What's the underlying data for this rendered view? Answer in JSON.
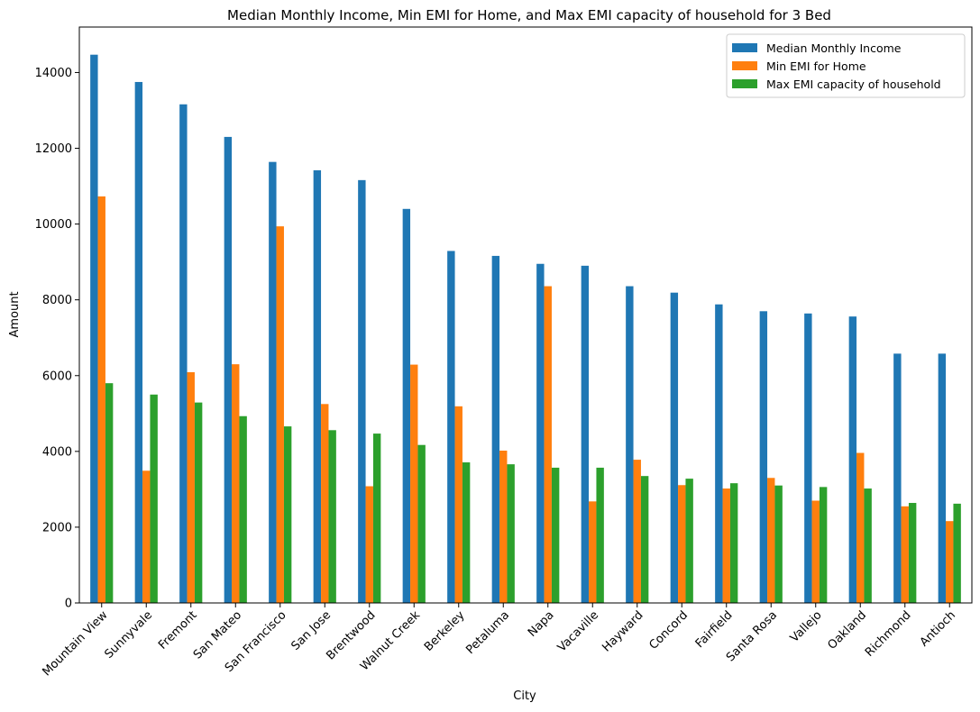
{
  "chart_data": {
    "type": "bar",
    "title": "Median Monthly Income, Min EMI for Home, and Max EMI capacity of household for 3 Bed",
    "xlabel": "City",
    "ylabel": "Amount",
    "ylim": [
      0,
      15200
    ],
    "yticks": [
      0,
      2000,
      4000,
      6000,
      8000,
      10000,
      12000,
      14000
    ],
    "legend_position": "top-right",
    "categories": [
      "Mountain View",
      "Sunnyvale",
      "Fremont",
      "San Mateo",
      "San Francisco",
      "San Jose",
      "Brentwood",
      "Walnut Creek",
      "Berkeley",
      "Petaluma",
      "Napa",
      "Vacaville",
      "Hayward",
      "Concord",
      "Fairfield",
      "Santa Rosa",
      "Vallejo",
      "Oakland",
      "Richmond",
      "Antioch"
    ],
    "series": [
      {
        "name": "Median Monthly Income",
        "color": "#1f77b4",
        "values": [
          14470,
          13750,
          13160,
          12300,
          11640,
          11420,
          11160,
          10400,
          9290,
          9160,
          8950,
          8900,
          8360,
          8190,
          7880,
          7700,
          7640,
          7560,
          6580,
          6580
        ]
      },
      {
        "name": "Min EMI for Home",
        "color": "#ff7f0e",
        "values": [
          10730,
          3490,
          6090,
          6300,
          9940,
          5250,
          3080,
          6290,
          5190,
          4020,
          8360,
          2680,
          3780,
          3110,
          3020,
          3300,
          2700,
          3960,
          2550,
          2160
        ]
      },
      {
        "name": "Max EMI capacity of household",
        "color": "#2ca02c",
        "values": [
          5800,
          5500,
          5290,
          4930,
          4660,
          4560,
          4470,
          4170,
          3710,
          3660,
          3570,
          3570,
          3350,
          3280,
          3160,
          3100,
          3060,
          3020,
          2640,
          2620
        ]
      }
    ]
  }
}
